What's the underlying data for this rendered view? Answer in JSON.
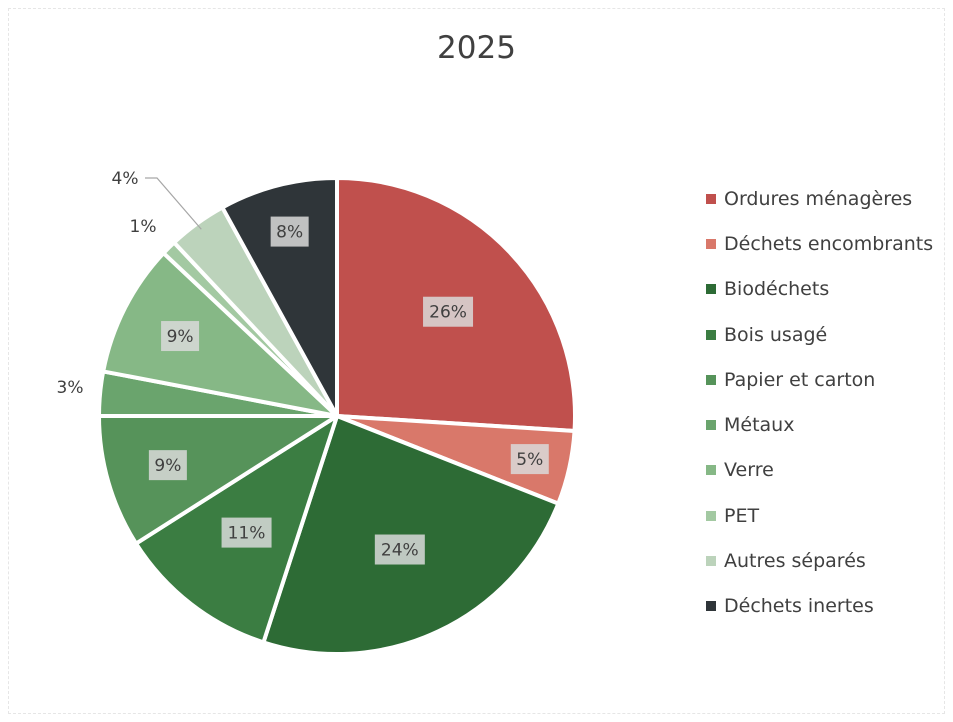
{
  "chart_data": {
    "type": "pie",
    "title": "2025",
    "legend_position": "right",
    "slices": [
      {
        "name": "Ordures ménagères",
        "value": 26,
        "label": "26%",
        "color": "#c0504d"
      },
      {
        "name": "Déchets encombrants",
        "value": 5,
        "label": "5%",
        "color": "#d9786a"
      },
      {
        "name": "Biodéchets",
        "value": 24,
        "label": "24%",
        "color": "#2d6b35"
      },
      {
        "name": "Bois usagé",
        "value": 11,
        "label": "11%",
        "color": "#3b7d42"
      },
      {
        "name": "Papier et carton",
        "value": 9,
        "label": "9%",
        "color": "#56935a"
      },
      {
        "name": "Métaux",
        "value": 3,
        "label": "3%",
        "color": "#6aa46d"
      },
      {
        "name": "Verre",
        "value": 9,
        "label": "9%",
        "color": "#86b886"
      },
      {
        "name": "PET",
        "value": 1,
        "label": "1%",
        "color": "#a3c9a2"
      },
      {
        "name": "Autres séparés",
        "value": 4,
        "label": "4%",
        "color": "#bcd3bb"
      },
      {
        "name": "Déchets inertes",
        "value": 8,
        "label": "8%",
        "color": "#2f3539"
      }
    ]
  }
}
